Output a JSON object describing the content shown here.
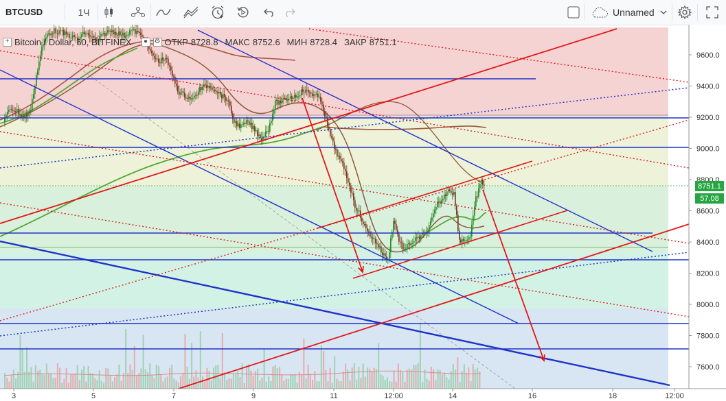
{
  "toolbar": {
    "symbol": "BTCUSD",
    "interval": "1Ч",
    "layout_name": "Unnamed"
  },
  "legend": {
    "title": "Bitcoin / Dollar, 60, BITFINEX",
    "open_label": "ОТКР",
    "open_value": "8728.8",
    "high_label": "МАКС",
    "high_value": "8752.6",
    "low_label": "МИН",
    "low_value": "8728.4",
    "close_label": "ЗАКР",
    "close_value": "8751.1"
  },
  "price_axis": {
    "labels": [
      "9600.0",
      "9400.0",
      "9200.0",
      "9000.0",
      "8800.0",
      "8600.0",
      "8400.0",
      "8200.0",
      "8000.0",
      "7800.0",
      "7600.0"
    ],
    "last_price": "8751.1",
    "indicator_value": "57.08"
  },
  "time_axis": {
    "labels": [
      "3",
      "5",
      "7",
      "9",
      "11",
      "12:00",
      "14",
      "16",
      "18",
      "12:00"
    ]
  },
  "colors": {
    "bull": "#2a8c2a",
    "bear": "#7a3b1e",
    "trend_blue": "#1f32c8",
    "trend_red": "#e01818",
    "ma_green": "#52a832",
    "ma_brown": "#8f5a45",
    "zone_red": "#f6d3d3",
    "zone_yellow": "#edf2d8",
    "zone_green": "#d8f0dc",
    "zone_mint": "#d3f2e6",
    "zone_blue": "#d7e6f2",
    "badge_green": "#26a643"
  }
}
